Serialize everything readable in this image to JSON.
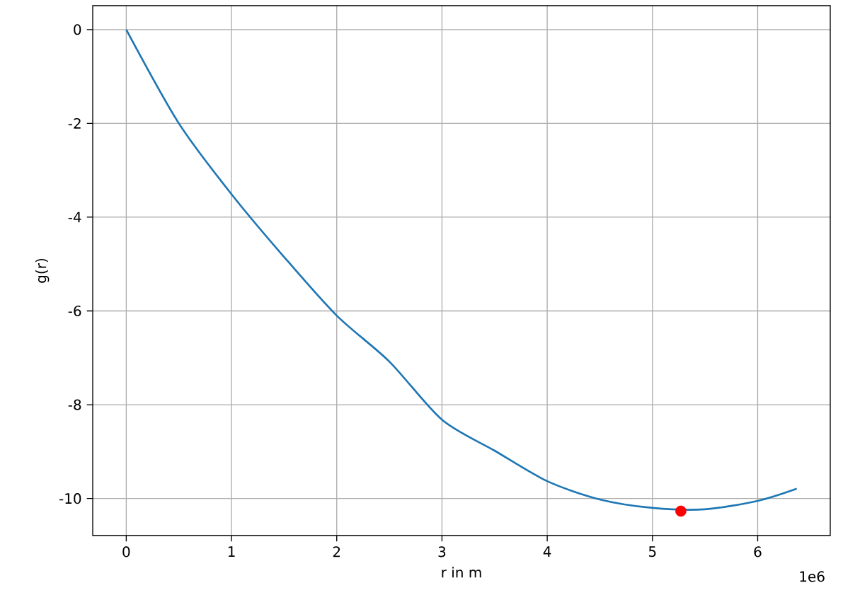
{
  "chart_data": {
    "type": "line",
    "xlabel": "r in m",
    "ylabel": "g(r)",
    "annotations": [
      "1e6"
    ],
    "grid": true,
    "xlim": [
      -0.3186,
      6.6896
    ],
    "ylim": [
      -10.79,
      0.51
    ],
    "xticks": [
      0,
      1,
      2,
      3,
      4,
      5,
      6
    ],
    "yticks": [
      -10,
      -8,
      -6,
      -4,
      -2,
      0
    ],
    "series": [
      {
        "color": "#1f77b4",
        "x": [
          0,
          0.5,
          1,
          1.5,
          2,
          2.5,
          3,
          3.5,
          4,
          4.5,
          5,
          5.5,
          6,
          6.371
        ],
        "values": [
          0,
          -2.0,
          -3.51,
          -4.85,
          -6.1,
          -7.08,
          -8.32,
          -8.98,
          -9.63,
          -10.02,
          -10.2,
          -10.23,
          -10.05,
          -9.79
        ]
      },
      {
        "type": "scatter",
        "marker": "circle",
        "color": "#ff0000",
        "x": [
          5.27
        ],
        "values": [
          -10.27
        ]
      }
    ]
  }
}
